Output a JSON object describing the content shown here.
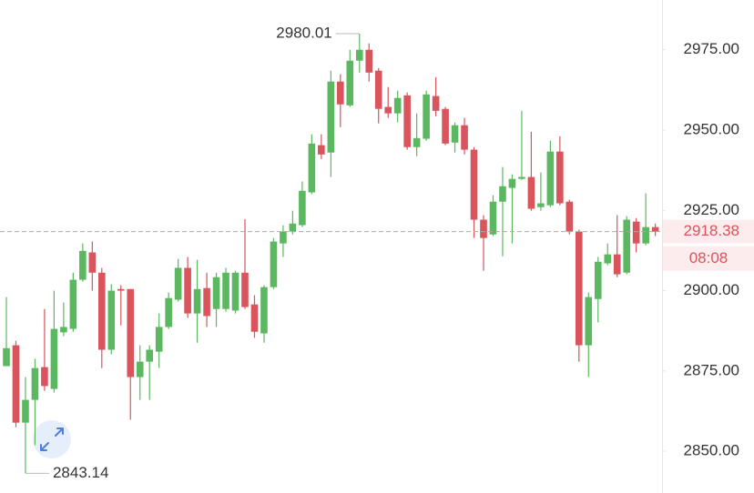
{
  "chart_data": {
    "type": "candlestick",
    "open": [
      2876.5,
      2883.0,
      2858.9,
      2866.0,
      2876.2,
      2869.4,
      2887.0,
      2888.1,
      2903.4,
      2911.9,
      2905.6,
      2881.6,
      2900.5,
      2900.5,
      2873.1,
      2877.9,
      2881.0,
      2888.7,
      2897.2,
      2907.1,
      2892.9,
      2900.8,
      2894.3,
      2894.3,
      2893.8,
      2905.6,
      2895.7,
      2886.7,
      2901.1,
      2914.7,
      2918.4,
      2920.4,
      2930.6,
      2945.3,
      2943.0,
      2965.1,
      2957.7,
      2971.6,
      2975.0,
      2968.5,
      2957.2,
      2955.2,
      2960.8,
      2944.7,
      2947.3,
      2960.6,
      2956.6,
      2946.1,
      2951.5,
      2943.9,
      2922.1,
      2917.5,
      2927.7,
      2932.0,
      2934.8,
      2935.4,
      2926.0,
      2926.6,
      2943.3,
      2927.7,
      2918.4,
      2883.0,
      2897.4,
      2908.5,
      2911.3,
      2905.6,
      2921.5,
      2914.7,
      2919.8
    ],
    "high": [
      2898.0,
      2884.4,
      2873.1,
      2878.8,
      2894.3,
      2900.0,
      2896.3,
      2905.6,
      2914.7,
      2915.3,
      2907.1,
      2902.0,
      2901.7,
      2900.5,
      2883.0,
      2883.0,
      2892.9,
      2899.4,
      2909.9,
      2910.5,
      2909.6,
      2905.6,
      2905.6,
      2907.1,
      2906.2,
      2922.3,
      2898.6,
      2901.7,
      2916.4,
      2920.4,
      2924.9,
      2934.0,
      2948.7,
      2948.7,
      2968.5,
      2967.4,
      2975.0,
      2980.01,
      2977.0,
      2969.3,
      2963.4,
      2962.3,
      2961.7,
      2955.2,
      2962.3,
      2966.5,
      2957.2,
      2952.4,
      2953.8,
      2944.7,
      2923.5,
      2929.7,
      2938.5,
      2936.2,
      2956.0,
      2949.5,
      2936.8,
      2946.7,
      2948.1,
      2928.3,
      2919.0,
      2899.4,
      2910.5,
      2914.7,
      2923.5,
      2923.2,
      2922.6,
      2930.3,
      2920.9
    ],
    "low": [
      2876.5,
      2857.5,
      2843.14,
      2851.9,
      2868.8,
      2868.3,
      2885.8,
      2887.2,
      2902.8,
      2900.0,
      2875.9,
      2880.2,
      2889.2,
      2859.8,
      2866.0,
      2866.0,
      2875.9,
      2888.1,
      2896.6,
      2891.5,
      2883.8,
      2888.7,
      2888.7,
      2893.5,
      2892.9,
      2894.3,
      2885.3,
      2883.8,
      2900.5,
      2910.5,
      2917.5,
      2919.8,
      2930.0,
      2941.0,
      2935.4,
      2950.9,
      2957.2,
      2967.9,
      2965.1,
      2952.1,
      2953.8,
      2952.4,
      2943.9,
      2941.9,
      2946.7,
      2954.3,
      2945.3,
      2943.0,
      2942.4,
      2916.4,
      2906.2,
      2917.0,
      2910.7,
      2914.7,
      2934.5,
      2924.9,
      2924.9,
      2926.0,
      2926.6,
      2917.5,
      2877.9,
      2873.1,
      2890.1,
      2907.9,
      2904.2,
      2905.1,
      2911.9,
      2914.1,
      2917.0
    ],
    "close": [
      2882.1,
      2858.9,
      2866.0,
      2875.9,
      2870.3,
      2888.1,
      2888.7,
      2903.4,
      2912.4,
      2905.6,
      2881.6,
      2900.0,
      2900.0,
      2873.1,
      2877.9,
      2881.6,
      2888.7,
      2897.7,
      2907.1,
      2892.9,
      2900.5,
      2892.1,
      2904.2,
      2905.6,
      2905.6,
      2894.9,
      2887.2,
      2901.1,
      2915.3,
      2918.4,
      2920.9,
      2931.1,
      2945.8,
      2942.4,
      2965.1,
      2958.0,
      2971.6,
      2975.0,
      2967.9,
      2956.6,
      2955.2,
      2960.0,
      2944.7,
      2947.5,
      2961.1,
      2956.0,
      2945.8,
      2951.5,
      2943.9,
      2922.1,
      2916.4,
      2927.7,
      2932.5,
      2934.8,
      2935.4,
      2925.5,
      2927.2,
      2943.3,
      2927.2,
      2918.4,
      2883.0,
      2898.0,
      2909.0,
      2911.3,
      2905.1,
      2922.1,
      2914.7,
      2919.8,
      2918.38
    ],
    "up_color": "#5cb860",
    "down_color": "#d9545c",
    "countdown": "08:08",
    "ylim": [
      2837,
      2990.5
    ],
    "yticks": [
      {
        "value": 2850,
        "label": "2850.00"
      },
      {
        "value": 2875,
        "label": "2875.00"
      },
      {
        "value": 2900,
        "label": "2900.00"
      },
      {
        "value": 2925,
        "label": "2925.00"
      },
      {
        "value": 2950,
        "label": "2950.00"
      },
      {
        "value": 2975,
        "label": "2975.00"
      }
    ]
  }
}
